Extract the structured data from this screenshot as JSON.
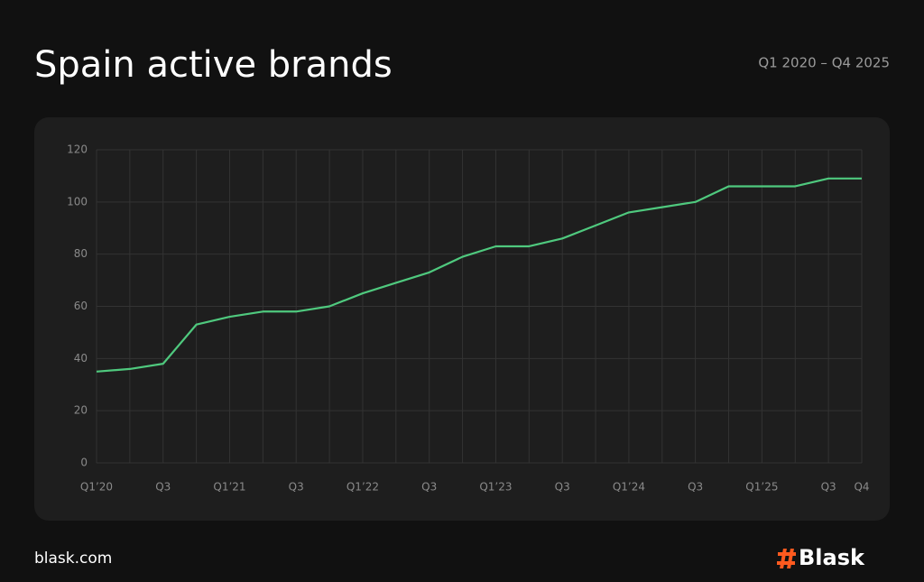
{
  "chart_data": {
    "type": "line",
    "title": "Spain active brands",
    "subtitle": "Q1 2020 – Q4 2025",
    "categories": [
      "Q1’20",
      null,
      "Q3",
      null,
      "Q1’21",
      null,
      "Q3",
      null,
      "Q1’22",
      null,
      "Q3",
      null,
      "Q1’23",
      null,
      "Q3",
      null,
      "Q1’24",
      null,
      "Q3",
      null,
      "Q1’25",
      null,
      "Q3",
      "Q4"
    ],
    "values": [
      35,
      36,
      38,
      53,
      56,
      58,
      58,
      60,
      65,
      69,
      73,
      79,
      83,
      83,
      86,
      91,
      96,
      98,
      100,
      106,
      106,
      106,
      109,
      109
    ],
    "color": "#4fc97e",
    "ylim": [
      0,
      120
    ],
    "yticks": [
      0,
      20,
      40,
      60,
      80,
      100,
      120
    ],
    "grid": true
  },
  "footer": {
    "site": "blask.com",
    "brand": "Blask"
  }
}
